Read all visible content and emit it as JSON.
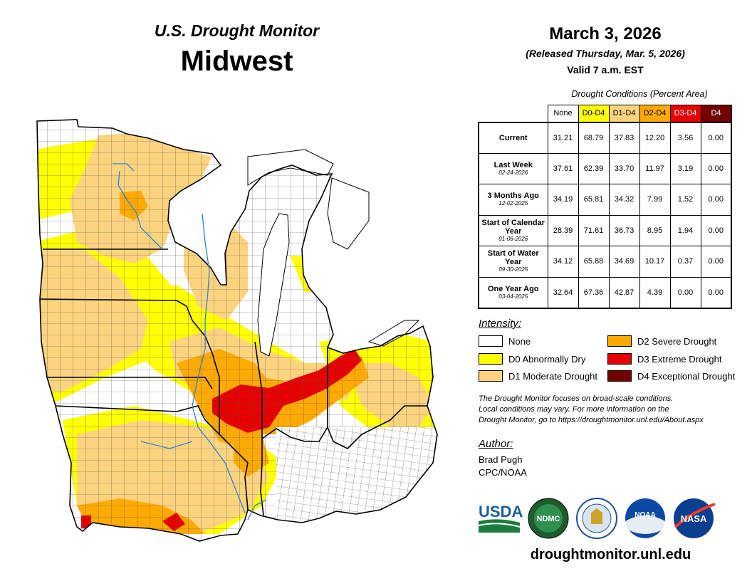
{
  "header": {
    "title": "U.S. Drought Monitor",
    "region": "Midwest",
    "date": "March 3, 2026",
    "released": "(Released Thursday, Mar. 5, 2026)",
    "valid": "Valid 7 a.m. EST"
  },
  "table": {
    "caption": "Drought Conditions (Percent Area)",
    "columns": [
      {
        "label": "None",
        "color": "#ffffff",
        "text_color": "#000000"
      },
      {
        "label": "D0-D4",
        "color": "#ffff00",
        "text_color": "#000000"
      },
      {
        "label": "D1-D4",
        "color": "#fcd37f",
        "text_color": "#000000"
      },
      {
        "label": "D2-D4",
        "color": "#ffaa00",
        "text_color": "#000000"
      },
      {
        "label": "D3-D4",
        "color": "#e60000",
        "text_color": "#ffffff"
      },
      {
        "label": "D4",
        "color": "#730000",
        "text_color": "#ffffff"
      }
    ],
    "rows": [
      {
        "label": "Current",
        "date": "",
        "values": [
          "31.21",
          "68.79",
          "37.83",
          "12.20",
          "3.56",
          "0.00"
        ]
      },
      {
        "label": "Last Week",
        "date": "02-24-2026",
        "values": [
          "37.61",
          "62.39",
          "33.70",
          "11.97",
          "3.19",
          "0.00"
        ]
      },
      {
        "label": "3 Months Ago",
        "date": "12-02-2025",
        "values": [
          "34.19",
          "65.81",
          "34.32",
          "7.99",
          "1.52",
          "0.00"
        ]
      },
      {
        "label": "Start of Calendar Year",
        "date": "01-06-2026",
        "values": [
          "28.39",
          "71.61",
          "36.73",
          "8.95",
          "1.94",
          "0.00"
        ]
      },
      {
        "label": "Start of Water Year",
        "date": "09-30-2025",
        "values": [
          "34.12",
          "65.88",
          "34.69",
          "10.17",
          "0.37",
          "0.00"
        ]
      },
      {
        "label": "One Year Ago",
        "date": "03-04-2025",
        "values": [
          "32.64",
          "67.36",
          "42.87",
          "4.39",
          "0.00",
          "0.00"
        ]
      }
    ]
  },
  "legend": {
    "title": "Intensity:",
    "items": [
      {
        "label": "None",
        "color": "#ffffff"
      },
      {
        "label": "D0 Abnormally Dry",
        "color": "#ffff00"
      },
      {
        "label": "D1 Moderate Drought",
        "color": "#fcd37f"
      },
      {
        "label": "D2 Severe Drought",
        "color": "#ffaa00"
      },
      {
        "label": "D3 Extreme Drought",
        "color": "#e60000"
      },
      {
        "label": "D4 Exceptional Drought",
        "color": "#730000"
      }
    ]
  },
  "note": {
    "line1": "The Drought Monitor focuses on broad-scale conditions.",
    "line2": "Local conditions may vary. For more information on the",
    "line3": "Drought Monitor, go to https://droughtmonitor.unl.edu/About.aspx"
  },
  "author": {
    "title": "Author:",
    "name": "Brad Pugh",
    "org": "CPC/NOAA"
  },
  "logos": {
    "usda": "USDA",
    "ndmc": "NDMC",
    "noaa": "NOAA",
    "nasa": "NASA"
  },
  "url": "droughtmonitor.unl.edu",
  "colors": {
    "water": "#2b83d6",
    "lake": "#ffffff",
    "county_line": "#555555",
    "state_line": "#000000"
  }
}
